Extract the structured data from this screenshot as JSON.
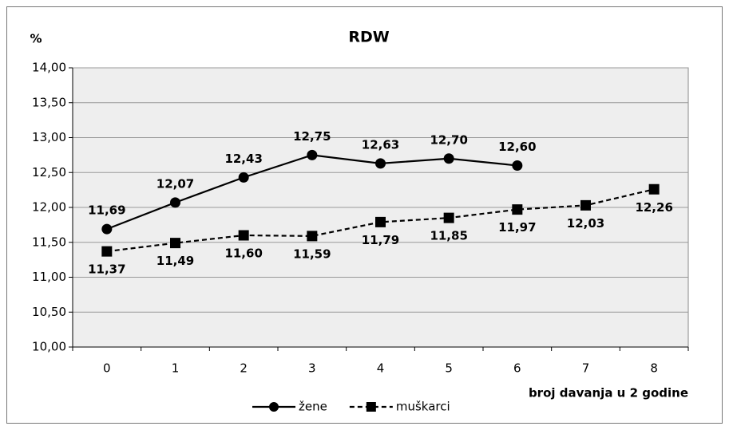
{
  "chart_data": {
    "type": "line",
    "title": "RDW",
    "y_label": "%",
    "x_label": "broj davanja u 2 godine",
    "categories": [
      "0",
      "1",
      "2",
      "3",
      "4",
      "5",
      "6",
      "7",
      "8"
    ],
    "series": [
      {
        "name": "žene",
        "color": "#000000",
        "marker": "circle",
        "dashed": false,
        "values": [
          11.69,
          12.07,
          12.43,
          12.75,
          12.63,
          12.7,
          12.6,
          null,
          null
        ],
        "value_labels": [
          "11,69",
          "12,07",
          "12,43",
          "12,75",
          "12,63",
          "12,70",
          "12,60",
          null,
          null
        ]
      },
      {
        "name": "muškarci",
        "color": "#000000",
        "marker": "square",
        "dashed": true,
        "values": [
          11.37,
          11.49,
          11.6,
          11.59,
          11.79,
          11.85,
          11.97,
          12.03,
          12.26
        ],
        "value_labels": [
          "11,37",
          "11,49",
          "11,60",
          "11,59",
          "11,79",
          "11,85",
          "11,97",
          "12,03",
          "12,26"
        ]
      }
    ],
    "ylim": [
      10,
      14
    ],
    "yticks": [
      {
        "value": 10,
        "label": "10,00"
      },
      {
        "value": 10.5,
        "label": "10,50"
      },
      {
        "value": 11,
        "label": "11,00"
      },
      {
        "value": 11.5,
        "label": "11,50"
      },
      {
        "value": 12,
        "label": "12,00"
      },
      {
        "value": 12.5,
        "label": "12,50"
      },
      {
        "value": 13,
        "label": "13,00"
      },
      {
        "value": 13.5,
        "label": "13,50"
      },
      {
        "value": 14,
        "label": "14,00"
      }
    ],
    "grid": true,
    "plot_background": "#eeeeee",
    "legend_position": "bottom"
  }
}
